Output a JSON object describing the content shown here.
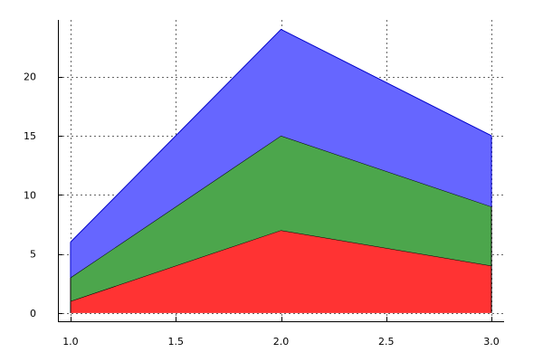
{
  "chart_data": {
    "type": "area",
    "stacked": true,
    "x": [
      1.0,
      2.0,
      3.0
    ],
    "series": [
      {
        "values": [
          1,
          7,
          4
        ],
        "color": "#ff3333",
        "edge_color": "#000000"
      },
      {
        "values": [
          2,
          8,
          5
        ],
        "color": "#4ca64c",
        "edge_color": "#000000"
      },
      {
        "values": [
          3,
          9,
          6
        ],
        "color": "#6666ff",
        "edge_color": "#0000cc"
      }
    ],
    "xlim": [
      0.94,
      3.06
    ],
    "ylim": [
      -0.7,
      24.8
    ],
    "xticks": [
      1.0,
      1.5,
      2.0,
      2.5,
      3.0
    ],
    "xtick_labels": [
      "1.0",
      "1.5",
      "2.0",
      "2.5",
      "3.0"
    ],
    "yticks": [
      0,
      5,
      10,
      15,
      20
    ],
    "ytick_labels": [
      "0",
      "5",
      "10",
      "15",
      "20"
    ],
    "grid": true,
    "title": "",
    "xlabel": "",
    "ylabel": ""
  }
}
